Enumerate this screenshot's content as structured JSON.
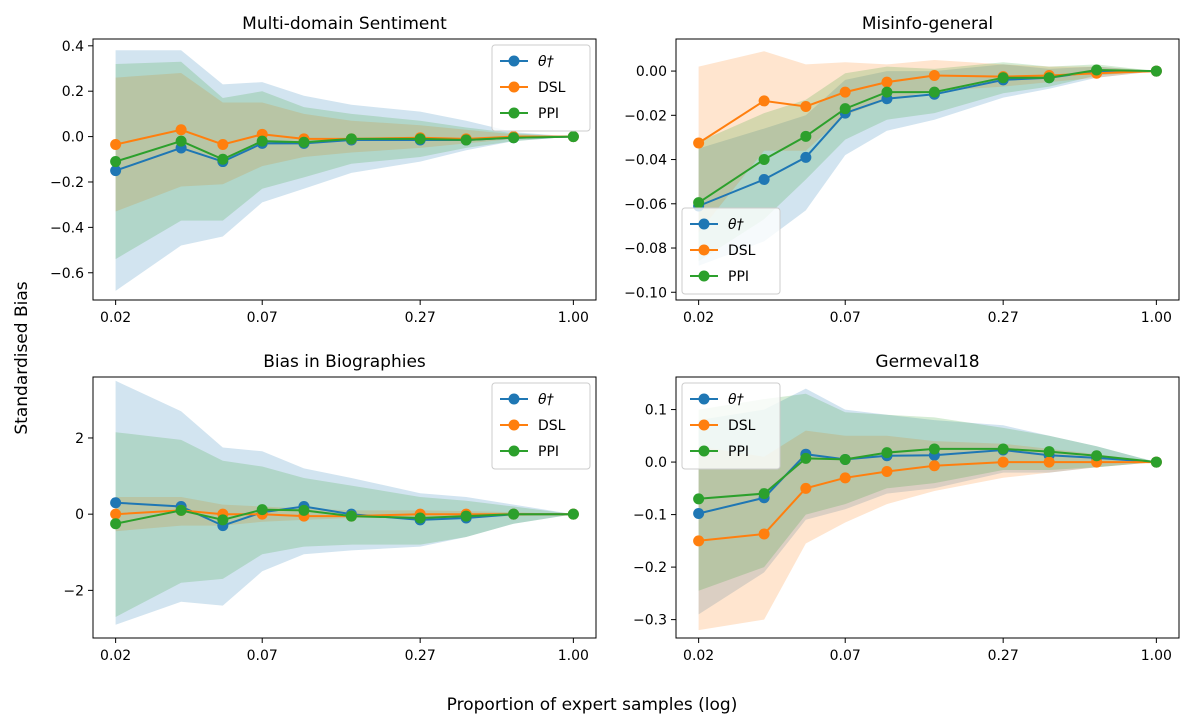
{
  "figure": {
    "ylabel": "Standardised Bias",
    "xlabel": "Proportion of expert samples (log)"
  },
  "legend_labels": [
    "θ†",
    "DSL",
    "PPI"
  ],
  "colors": {
    "theta": "#1f77b4",
    "dsl": "#ff7f0e",
    "ppi": "#2ca02c"
  },
  "chart_data": [
    {
      "type": "line",
      "title": "Multi-domain Sentiment",
      "x": [
        0.02,
        0.035,
        0.05,
        0.07,
        0.1,
        0.15,
        0.27,
        0.4,
        0.6,
        1.0
      ],
      "xticks": [
        "0.02",
        "0.07",
        "0.27",
        "1.00"
      ],
      "xtick_values": [
        0.02,
        0.07,
        0.27,
        1.0
      ],
      "ylim": [
        -0.72,
        0.43
      ],
      "yticks": [
        0.4,
        0.2,
        0.0,
        -0.2,
        -0.4,
        -0.6
      ],
      "ytick_labels": [
        "0.4",
        "0.2",
        "0.0",
        "−0.2",
        "−0.4",
        "−0.6"
      ],
      "legend": "top-right",
      "series": [
        {
          "name": "θ†",
          "values": [
            -0.15,
            -0.05,
            -0.11,
            -0.03,
            -0.03,
            -0.015,
            -0.015,
            -0.015,
            -0.005,
            0.0
          ],
          "lower": [
            -0.68,
            -0.48,
            -0.44,
            -0.29,
            -0.23,
            -0.16,
            -0.11,
            -0.06,
            -0.02,
            0.0
          ],
          "upper": [
            0.38,
            0.38,
            0.23,
            0.24,
            0.18,
            0.14,
            0.11,
            0.07,
            0.02,
            0.0
          ]
        },
        {
          "name": "DSL",
          "values": [
            -0.035,
            0.03,
            -0.035,
            0.01,
            -0.01,
            -0.01,
            -0.005,
            -0.01,
            0.0,
            0.0
          ],
          "lower": [
            -0.33,
            -0.22,
            -0.21,
            -0.13,
            -0.09,
            -0.07,
            -0.05,
            -0.03,
            -0.01,
            0.0
          ],
          "upper": [
            0.26,
            0.28,
            0.15,
            0.15,
            0.1,
            0.07,
            0.05,
            0.03,
            0.01,
            0.0
          ]
        },
        {
          "name": "PPI",
          "values": [
            -0.11,
            -0.02,
            -0.1,
            -0.02,
            -0.025,
            -0.01,
            -0.01,
            -0.015,
            -0.005,
            0.0
          ],
          "lower": [
            -0.54,
            -0.37,
            -0.37,
            -0.23,
            -0.18,
            -0.12,
            -0.09,
            -0.05,
            -0.02,
            0.0
          ],
          "upper": [
            0.32,
            0.33,
            0.17,
            0.2,
            0.13,
            0.1,
            0.07,
            0.04,
            0.015,
            0.0
          ]
        }
      ]
    },
    {
      "type": "line",
      "title": "Misinfo-general",
      "x": [
        0.02,
        0.035,
        0.05,
        0.07,
        0.1,
        0.15,
        0.27,
        0.4,
        0.6,
        1.0
      ],
      "xticks": [
        "0.02",
        "0.07",
        "0.27",
        "1.00"
      ],
      "xtick_values": [
        0.02,
        0.07,
        0.27,
        1.0
      ],
      "ylim": [
        -0.1035,
        0.0145
      ],
      "yticks": [
        0.0,
        -0.02,
        -0.04,
        -0.06,
        -0.08,
        -0.1
      ],
      "ytick_labels": [
        "0.00",
        "−0.02",
        "−0.04",
        "−0.06",
        "−0.08",
        "−0.10"
      ],
      "legend": "lower-left",
      "series": [
        {
          "name": "θ†",
          "values": [
            -0.061,
            -0.049,
            -0.039,
            -0.019,
            -0.0125,
            -0.0105,
            -0.004,
            -0.003,
            0.0,
            0.0
          ],
          "lower": [
            -0.088,
            -0.077,
            -0.063,
            -0.038,
            -0.027,
            -0.022,
            -0.012,
            -0.008,
            -0.003,
            0.0
          ],
          "upper": [
            -0.035,
            -0.026,
            -0.02,
            -0.004,
            0.0,
            0.0,
            0.003,
            0.001,
            0.002,
            0.0
          ]
        },
        {
          "name": "DSL",
          "values": [
            -0.0325,
            -0.0135,
            -0.016,
            -0.0095,
            -0.005,
            -0.002,
            -0.0025,
            -0.002,
            -0.001,
            0.0
          ],
          "lower": [
            -0.073,
            -0.036,
            -0.036,
            -0.02,
            -0.013,
            -0.009,
            -0.007,
            -0.005,
            -0.003,
            0.0
          ],
          "upper": [
            0.002,
            0.009,
            0.003,
            0.004,
            0.003,
            0.005,
            0.003,
            0.002,
            0.002,
            0.0
          ]
        },
        {
          "name": "PPI",
          "values": [
            -0.0595,
            -0.04,
            -0.0295,
            -0.017,
            -0.0095,
            -0.0095,
            -0.003,
            -0.003,
            0.0005,
            0.0
          ],
          "lower": [
            -0.086,
            -0.067,
            -0.049,
            -0.031,
            -0.022,
            -0.019,
            -0.01,
            -0.007,
            -0.002,
            0.0
          ],
          "upper": [
            -0.032,
            -0.019,
            -0.013,
            -0.001,
            0.002,
            0.001,
            0.004,
            0.002,
            0.003,
            0.0
          ]
        }
      ]
    },
    {
      "type": "line",
      "title": "Bias in Biographies",
      "x": [
        0.02,
        0.035,
        0.05,
        0.07,
        0.1,
        0.15,
        0.27,
        0.4,
        0.6,
        1.0
      ],
      "xticks": [
        "0.02",
        "0.07",
        "0.27",
        "1.00"
      ],
      "xtick_values": [
        0.02,
        0.07,
        0.27,
        1.0
      ],
      "ylim": [
        -3.25,
        3.6
      ],
      "yticks": [
        2,
        0,
        -2
      ],
      "ytick_labels": [
        "2",
        "0",
        "−2"
      ],
      "legend": "top-right",
      "series": [
        {
          "name": "θ†",
          "values": [
            0.3,
            0.2,
            -0.3,
            0.05,
            0.2,
            0.0,
            -0.15,
            -0.1,
            0.0,
            0.0
          ],
          "lower": [
            -2.9,
            -2.3,
            -2.4,
            -1.5,
            -1.05,
            -0.95,
            -0.85,
            -0.6,
            -0.25,
            0.0
          ],
          "upper": [
            3.5,
            2.7,
            1.75,
            1.65,
            1.2,
            0.95,
            0.55,
            0.45,
            0.25,
            0.0
          ]
        },
        {
          "name": "DSL",
          "values": [
            0.0,
            0.1,
            0.0,
            0.0,
            -0.05,
            -0.05,
            0.0,
            0.0,
            0.0,
            0.0
          ],
          "lower": [
            -0.45,
            -0.3,
            -0.3,
            -0.2,
            -0.15,
            -0.1,
            -0.1,
            -0.08,
            -0.05,
            0.0
          ],
          "upper": [
            0.45,
            0.45,
            0.25,
            0.2,
            0.15,
            0.1,
            0.1,
            0.08,
            0.05,
            0.0
          ]
        },
        {
          "name": "PPI",
          "values": [
            -0.25,
            0.1,
            -0.15,
            0.12,
            0.1,
            -0.05,
            -0.1,
            -0.05,
            0.0,
            0.0
          ],
          "lower": [
            -2.7,
            -1.8,
            -1.7,
            -1.05,
            -0.85,
            -0.8,
            -0.8,
            -0.6,
            -0.25,
            0.0
          ],
          "upper": [
            2.15,
            1.95,
            1.4,
            1.25,
            0.95,
            0.75,
            0.45,
            0.35,
            0.2,
            0.0
          ]
        }
      ]
    },
    {
      "type": "line",
      "title": "Germeval18",
      "x": [
        0.02,
        0.035,
        0.05,
        0.07,
        0.1,
        0.15,
        0.27,
        0.4,
        0.6,
        1.0
      ],
      "xticks": [
        "0.02",
        "0.07",
        "0.27",
        "1.00"
      ],
      "xtick_values": [
        0.02,
        0.07,
        0.27,
        1.0
      ],
      "ylim": [
        -0.335,
        0.162
      ],
      "yticks": [
        0.1,
        0.0,
        -0.1,
        -0.2,
        -0.3
      ],
      "ytick_labels": [
        "0.1",
        "0.0",
        "−0.1",
        "−0.2",
        "−0.3"
      ],
      "legend": "top-left",
      "series": [
        {
          "name": "θ†",
          "values": [
            -0.098,
            -0.068,
            0.015,
            0.005,
            0.012,
            0.013,
            0.023,
            0.013,
            0.008,
            0.0
          ],
          "lower": [
            -0.29,
            -0.21,
            -0.11,
            -0.09,
            -0.06,
            -0.05,
            -0.02,
            -0.02,
            -0.01,
            0.0
          ],
          "upper": [
            0.08,
            0.1,
            0.14,
            0.1,
            0.09,
            0.08,
            0.07,
            0.05,
            0.03,
            0.0
          ]
        },
        {
          "name": "DSL",
          "values": [
            -0.15,
            -0.137,
            -0.05,
            -0.03,
            -0.018,
            -0.007,
            0.0,
            0.0,
            0.0,
            0.0
          ],
          "lower": [
            -0.32,
            -0.3,
            -0.155,
            -0.115,
            -0.08,
            -0.055,
            -0.03,
            -0.02,
            -0.01,
            0.0
          ],
          "upper": [
            0.03,
            0.01,
            0.06,
            0.05,
            0.05,
            0.04,
            0.035,
            0.025,
            0.015,
            0.0
          ]
        },
        {
          "name": "PPI",
          "values": [
            -0.07,
            -0.06,
            0.007,
            0.005,
            0.018,
            0.025,
            0.025,
            0.02,
            0.012,
            0.0
          ],
          "lower": [
            -0.245,
            -0.2,
            -0.1,
            -0.08,
            -0.05,
            -0.04,
            -0.015,
            -0.015,
            -0.01,
            0.0
          ],
          "upper": [
            0.1,
            0.12,
            0.13,
            0.095,
            0.09,
            0.085,
            0.065,
            0.05,
            0.03,
            0.0
          ]
        }
      ]
    }
  ]
}
